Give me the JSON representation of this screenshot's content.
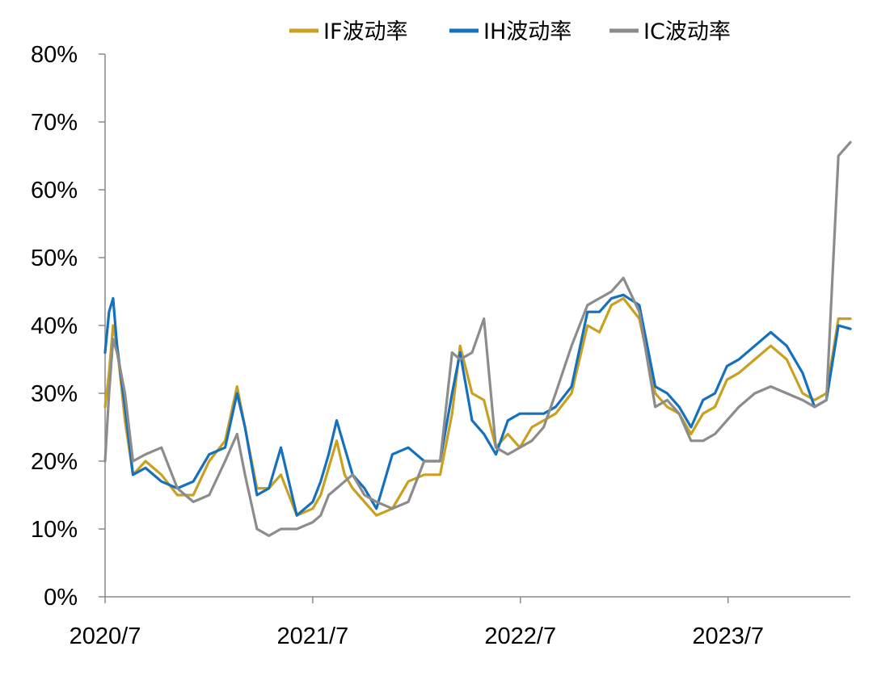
{
  "chart_data": {
    "type": "line",
    "title": "",
    "xlabel": "",
    "ylabel": "",
    "ylim": [
      0,
      80
    ],
    "y_ticks": [
      "0%",
      "10%",
      "20%",
      "30%",
      "40%",
      "50%",
      "60%",
      "70%",
      "80%"
    ],
    "x_ticks": [
      "2020/7",
      "2021/7",
      "2022/7",
      "2023/7"
    ],
    "x_tick_dates": [
      "2020-07",
      "2021-07",
      "2022-07",
      "2023-07"
    ],
    "x_range": [
      "2020-07",
      "2024-02"
    ],
    "grid": false,
    "legend_position": "top",
    "series": [
      {
        "name": "IF波动率",
        "color": "#C9A020",
        "points": [
          [
            "2020-07-01",
            28
          ],
          [
            "2020-07-08",
            33
          ],
          [
            "2020-07-15",
            40
          ],
          [
            "2020-07-22",
            37
          ],
          [
            "2020-08-05",
            26
          ],
          [
            "2020-08-19",
            18
          ],
          [
            "2020-09-10",
            20
          ],
          [
            "2020-10-08",
            18
          ],
          [
            "2020-11-05",
            15
          ],
          [
            "2020-12-03",
            15
          ],
          [
            "2020-12-31",
            20
          ],
          [
            "2021-01-28",
            23
          ],
          [
            "2021-02-18",
            31
          ],
          [
            "2021-03-04",
            25
          ],
          [
            "2021-03-25",
            16
          ],
          [
            "2021-04-15",
            16
          ],
          [
            "2021-05-06",
            18
          ],
          [
            "2021-06-03",
            12
          ],
          [
            "2021-07-01",
            13
          ],
          [
            "2021-07-15",
            15
          ],
          [
            "2021-07-29",
            19
          ],
          [
            "2021-08-12",
            23
          ],
          [
            "2021-08-26",
            18
          ],
          [
            "2021-09-09",
            16
          ],
          [
            "2021-09-30",
            14
          ],
          [
            "2021-10-21",
            12
          ],
          [
            "2021-11-18",
            13
          ],
          [
            "2021-12-16",
            17
          ],
          [
            "2022-01-13",
            18
          ],
          [
            "2022-02-10",
            18
          ],
          [
            "2022-03-03",
            27
          ],
          [
            "2022-03-17",
            37
          ],
          [
            "2022-04-07",
            30
          ],
          [
            "2022-04-28",
            29
          ],
          [
            "2022-05-19",
            22
          ],
          [
            "2022-06-09",
            24
          ],
          [
            "2022-06-30",
            22
          ],
          [
            "2022-07-21",
            25
          ],
          [
            "2022-08-11",
            26
          ],
          [
            "2022-09-01",
            27
          ],
          [
            "2022-09-29",
            30
          ],
          [
            "2022-10-27",
            40
          ],
          [
            "2022-11-17",
            39
          ],
          [
            "2022-12-08",
            43
          ],
          [
            "2022-12-29",
            44
          ],
          [
            "2023-01-26",
            41
          ],
          [
            "2023-02-23",
            30
          ],
          [
            "2023-03-16",
            28
          ],
          [
            "2023-04-06",
            27
          ],
          [
            "2023-04-27",
            24
          ],
          [
            "2023-05-18",
            27
          ],
          [
            "2023-06-08",
            28
          ],
          [
            "2023-06-29",
            32
          ],
          [
            "2023-07-20",
            33
          ],
          [
            "2023-08-17",
            35
          ],
          [
            "2023-09-14",
            37
          ],
          [
            "2023-10-12",
            35
          ],
          [
            "2023-11-09",
            30
          ],
          [
            "2023-11-30",
            29
          ],
          [
            "2023-12-21",
            30
          ],
          [
            "2024-01-11",
            41
          ],
          [
            "2024-02-01",
            41
          ]
        ]
      },
      {
        "name": "IH波动率",
        "color": "#1570BE",
        "points": [
          [
            "2020-07-01",
            36
          ],
          [
            "2020-07-08",
            42
          ],
          [
            "2020-07-15",
            44
          ],
          [
            "2020-07-22",
            37
          ],
          [
            "2020-08-05",
            28
          ],
          [
            "2020-08-19",
            18
          ],
          [
            "2020-09-10",
            19
          ],
          [
            "2020-10-08",
            17
          ],
          [
            "2020-11-05",
            16
          ],
          [
            "2020-12-03",
            17
          ],
          [
            "2020-12-31",
            21
          ],
          [
            "2021-01-28",
            22
          ],
          [
            "2021-02-18",
            30
          ],
          [
            "2021-03-04",
            25
          ],
          [
            "2021-03-25",
            15
          ],
          [
            "2021-04-15",
            16
          ],
          [
            "2021-05-06",
            22
          ],
          [
            "2021-06-03",
            12
          ],
          [
            "2021-07-01",
            14
          ],
          [
            "2021-07-15",
            17
          ],
          [
            "2021-07-29",
            21
          ],
          [
            "2021-08-12",
            26
          ],
          [
            "2021-08-26",
            22
          ],
          [
            "2021-09-09",
            18
          ],
          [
            "2021-09-30",
            16
          ],
          [
            "2021-10-21",
            13
          ],
          [
            "2021-11-18",
            21
          ],
          [
            "2021-12-16",
            22
          ],
          [
            "2022-01-13",
            20
          ],
          [
            "2022-02-10",
            20
          ],
          [
            "2022-03-03",
            30
          ],
          [
            "2022-03-17",
            36
          ],
          [
            "2022-04-07",
            26
          ],
          [
            "2022-04-28",
            24
          ],
          [
            "2022-05-19",
            21
          ],
          [
            "2022-06-09",
            26
          ],
          [
            "2022-06-30",
            27
          ],
          [
            "2022-07-21",
            27
          ],
          [
            "2022-08-11",
            27
          ],
          [
            "2022-09-01",
            28
          ],
          [
            "2022-09-29",
            31
          ],
          [
            "2022-10-27",
            42
          ],
          [
            "2022-11-17",
            42
          ],
          [
            "2022-12-08",
            44
          ],
          [
            "2022-12-29",
            44.5
          ],
          [
            "2023-01-26",
            43
          ],
          [
            "2023-02-23",
            31
          ],
          [
            "2023-03-16",
            30
          ],
          [
            "2023-04-06",
            28
          ],
          [
            "2023-04-27",
            25
          ],
          [
            "2023-05-18",
            29
          ],
          [
            "2023-06-08",
            30
          ],
          [
            "2023-06-29",
            34
          ],
          [
            "2023-07-20",
            35
          ],
          [
            "2023-08-17",
            37
          ],
          [
            "2023-09-14",
            39
          ],
          [
            "2023-10-12",
            37
          ],
          [
            "2023-11-09",
            33
          ],
          [
            "2023-11-30",
            28
          ],
          [
            "2023-12-21",
            29
          ],
          [
            "2024-01-11",
            40
          ],
          [
            "2024-02-01",
            39.5
          ]
        ]
      },
      {
        "name": "IC波动率",
        "color": "#8C8C8C",
        "points": [
          [
            "2020-07-01",
            20
          ],
          [
            "2020-07-08",
            30
          ],
          [
            "2020-07-15",
            38
          ],
          [
            "2020-07-22",
            36
          ],
          [
            "2020-08-05",
            30
          ],
          [
            "2020-08-19",
            20
          ],
          [
            "2020-09-10",
            21
          ],
          [
            "2020-10-08",
            22
          ],
          [
            "2020-11-05",
            16
          ],
          [
            "2020-12-03",
            14
          ],
          [
            "2020-12-31",
            15
          ],
          [
            "2021-01-28",
            20
          ],
          [
            "2021-02-18",
            24
          ],
          [
            "2021-03-04",
            18
          ],
          [
            "2021-03-25",
            10
          ],
          [
            "2021-04-15",
            9
          ],
          [
            "2021-05-06",
            10
          ],
          [
            "2021-06-03",
            10
          ],
          [
            "2021-07-01",
            11
          ],
          [
            "2021-07-15",
            12
          ],
          [
            "2021-07-29",
            15
          ],
          [
            "2021-08-12",
            16
          ],
          [
            "2021-08-26",
            17
          ],
          [
            "2021-09-09",
            18
          ],
          [
            "2021-09-30",
            15
          ],
          [
            "2021-10-21",
            14
          ],
          [
            "2021-11-18",
            13
          ],
          [
            "2021-12-16",
            14
          ],
          [
            "2022-01-13",
            20
          ],
          [
            "2022-02-10",
            20
          ],
          [
            "2022-03-03",
            36
          ],
          [
            "2022-03-17",
            35
          ],
          [
            "2022-04-07",
            36
          ],
          [
            "2022-04-28",
            41
          ],
          [
            "2022-05-19",
            22
          ],
          [
            "2022-06-09",
            21
          ],
          [
            "2022-06-30",
            22
          ],
          [
            "2022-07-21",
            23
          ],
          [
            "2022-08-11",
            25
          ],
          [
            "2022-09-01",
            30
          ],
          [
            "2022-09-29",
            37
          ],
          [
            "2022-10-27",
            43
          ],
          [
            "2022-11-17",
            44
          ],
          [
            "2022-12-08",
            45
          ],
          [
            "2022-12-29",
            47
          ],
          [
            "2023-01-26",
            42
          ],
          [
            "2023-02-23",
            28
          ],
          [
            "2023-03-16",
            29
          ],
          [
            "2023-04-06",
            27
          ],
          [
            "2023-04-27",
            23
          ],
          [
            "2023-05-18",
            23
          ],
          [
            "2023-06-08",
            24
          ],
          [
            "2023-06-29",
            26
          ],
          [
            "2023-07-20",
            28
          ],
          [
            "2023-08-17",
            30
          ],
          [
            "2023-09-14",
            31
          ],
          [
            "2023-10-12",
            30
          ],
          [
            "2023-11-09",
            29
          ],
          [
            "2023-11-30",
            28
          ],
          [
            "2023-12-21",
            29
          ],
          [
            "2024-01-11",
            65
          ],
          [
            "2024-02-01",
            67
          ]
        ]
      }
    ]
  }
}
